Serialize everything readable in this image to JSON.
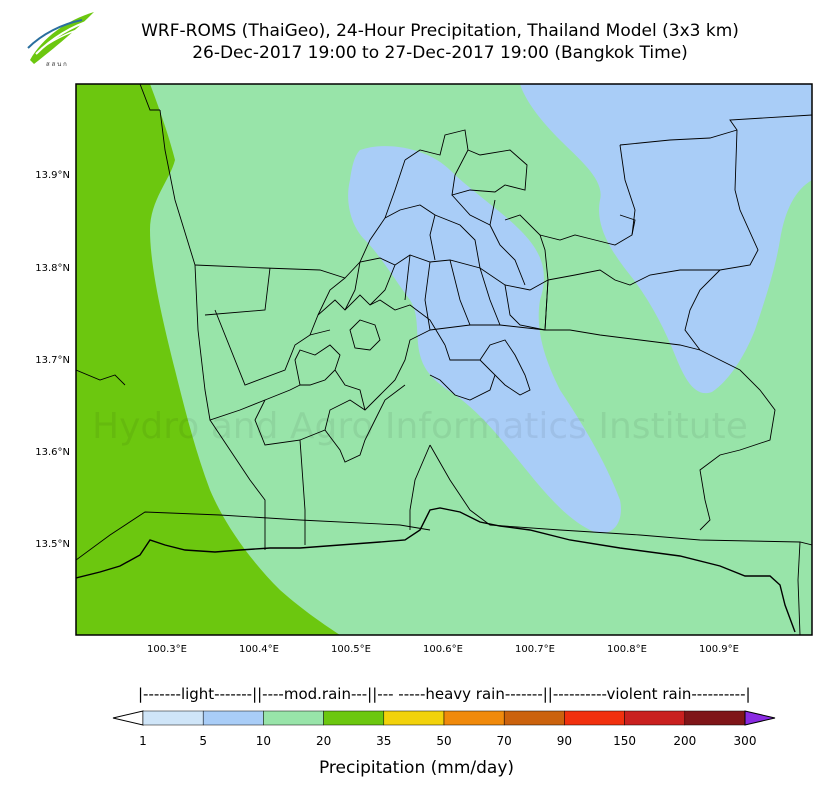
{
  "title_line1": "WRF-ROMS (ThaiGeo), 24-Hour Precipitation, Thailand Model (3x3 km)",
  "title_line2": "26-Dec-2017 19:00 to 27-Dec-2017 19:00 (Bangkok Time)",
  "watermark": "Hydro and Agro Informatics Institute",
  "lat_ticks": [
    "13.9°N",
    "13.8°N",
    "13.7°N",
    "13.6°N",
    "13.5°N"
  ],
  "lon_ticks": [
    "100.3°E",
    "100.4°E",
    "100.5°E",
    "100.6°E",
    "100.7°E",
    "100.8°E",
    "100.9°E"
  ],
  "legend_bands": "|-------light-------||----mod.rain---||--- -----heavy rain-------||----------violent rain----------|",
  "colorbar": {
    "title": "Precipitation (mm/day)",
    "labels": [
      "1",
      "5",
      "10",
      "20",
      "35",
      "50",
      "70",
      "90",
      "150",
      "200",
      "300"
    ],
    "colors": [
      "#cfe5f8",
      "#a9cdf7",
      "#98e4a9",
      "#6cc70f",
      "#f2d20b",
      "#f08a0c",
      "#cb620d",
      "#f1300e",
      "#c9201f",
      "#7f1518"
    ],
    "under_color": "#ffffff",
    "over_color": "#8a2be2"
  },
  "map_colors": {
    "ocean": "#98e4a9",
    "light_blue": "#a9cdf7",
    "green": "#6cc70f"
  }
}
